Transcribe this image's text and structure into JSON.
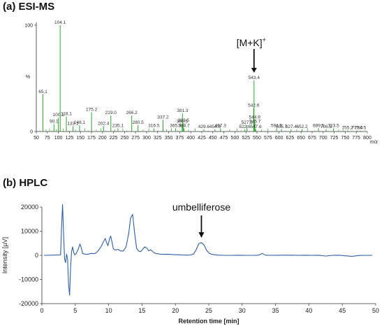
{
  "chart_data": [
    {
      "type": "bar",
      "title": "(a)  ESI-MS",
      "ylabel": "%",
      "xlabel": "m/z",
      "xlim": [
        50,
        800
      ],
      "ylim": [
        0,
        100
      ],
      "xticks": [
        50,
        75,
        100,
        125,
        150,
        175,
        200,
        225,
        250,
        275,
        300,
        325,
        350,
        375,
        400,
        425,
        450,
        475,
        500,
        525,
        550,
        575,
        600,
        625,
        650,
        675,
        700,
        725,
        750,
        775,
        800
      ],
      "yticks": [
        0,
        100
      ],
      "annotation": {
        "label": "[M+K]",
        "superscript": "+",
        "target_x": 543.4
      },
      "peaks": [
        {
          "x": 65.1,
          "y": 35,
          "label": "65.1"
        },
        {
          "x": 90.1,
          "y": 7,
          "label": "90.1"
        },
        {
          "x": 100.1,
          "y": 13,
          "label": "100.1"
        },
        {
          "x": 104.1,
          "y": 100,
          "label": "104.1"
        },
        {
          "x": 118.1,
          "y": 14,
          "label": "118.1"
        },
        {
          "x": 133.1,
          "y": 5,
          "label": "133.1"
        },
        {
          "x": 148.1,
          "y": 6,
          "label": "148.1"
        },
        {
          "x": 175.2,
          "y": 18,
          "label": "175.2"
        },
        {
          "x": 202.4,
          "y": 5,
          "label": "202.4"
        },
        {
          "x": 219.0,
          "y": 15,
          "label": "219.0"
        },
        {
          "x": 235.1,
          "y": 3,
          "label": "235.1"
        },
        {
          "x": 266.2,
          "y": 15,
          "label": "266.2"
        },
        {
          "x": 280.5,
          "y": 6,
          "label": "280.5"
        },
        {
          "x": 316.5,
          "y": 3,
          "label": "316.5"
        },
        {
          "x": 337.2,
          "y": 11,
          "label": "337.2"
        },
        {
          "x": 365.5,
          "y": 3,
          "label": "365.5"
        },
        {
          "x": 380.5,
          "y": 7,
          "label": "380.5"
        },
        {
          "x": 381.3,
          "y": 17,
          "label": "381.3"
        },
        {
          "x": 383.5,
          "y": 8,
          "label": "383.5"
        },
        {
          "x": 384.7,
          "y": 3,
          "label": "384.7"
        },
        {
          "x": 429.6,
          "y": 2,
          "label": "429.6"
        },
        {
          "x": 454.9,
          "y": 2,
          "label": "454.9"
        },
        {
          "x": 467.3,
          "y": 3,
          "label": "467.3"
        },
        {
          "x": 522.6,
          "y": 2,
          "label": "522.6"
        },
        {
          "x": 527.5,
          "y": 6,
          "label": "527.5"
        },
        {
          "x": 542.6,
          "y": 22,
          "label": "542.6"
        },
        {
          "x": 543.4,
          "y": 48,
          "label": "543.4"
        },
        {
          "x": 544.9,
          "y": 11,
          "label": "544.9"
        },
        {
          "x": 545.7,
          "y": 7,
          "label": "545.7"
        },
        {
          "x": 547.6,
          "y": 2,
          "label": "547.6"
        },
        {
          "x": 594.5,
          "y": 3,
          "label": "594.5"
        },
        {
          "x": 605.7,
          "y": 2,
          "label": "605.7"
        },
        {
          "x": 627.4,
          "y": 2,
          "label": "627.4"
        },
        {
          "x": 652.2,
          "y": 2,
          "label": "652.2"
        },
        {
          "x": 689.5,
          "y": 3,
          "label": "689.5"
        },
        {
          "x": 706.8,
          "y": 2,
          "label": "706.8"
        },
        {
          "x": 723.5,
          "y": 3,
          "label": "723.5"
        },
        {
          "x": 755.2,
          "y": 1,
          "label": "755.2"
        },
        {
          "x": 777.0,
          "y": 1,
          "label": "777.0"
        },
        {
          "x": 784.5,
          "y": 1,
          "label": "784.5"
        }
      ],
      "minor_peaks_x": [
        58,
        72,
        80,
        86,
        95,
        111,
        124,
        139,
        160,
        168,
        186,
        196,
        208,
        228,
        246,
        255,
        292,
        305,
        326,
        345,
        356,
        370,
        395,
        410,
        440,
        488,
        505,
        515,
        560,
        575,
        615,
        640,
        665,
        680,
        735,
        745,
        795
      ]
    },
    {
      "type": "line",
      "title": "(b)  HPLC",
      "xlabel": "Retention time [min]",
      "ylabel": "Intensity [µV]",
      "xlim": [
        0,
        50
      ],
      "ylim": [
        -20000,
        20000
      ],
      "xticks": [
        0,
        5,
        10,
        15,
        20,
        25,
        30,
        35,
        40,
        45,
        50
      ],
      "yticks": [
        -20000,
        -10000,
        0,
        10000,
        20000
      ],
      "annotation": {
        "label": "umbelliferose",
        "target_x": 23.9
      },
      "series": [
        {
          "color": "#2e5fa3",
          "x": [
            0.3,
            2.8,
            2.95,
            3.1,
            3.25,
            3.4,
            3.55,
            3.7,
            3.85,
            4.0,
            4.15,
            4.3,
            4.45,
            4.6,
            4.75,
            4.9,
            5.1,
            5.4,
            5.7,
            5.9,
            6.1,
            6.4,
            6.8,
            7.1,
            7.4,
            7.7,
            8.0,
            8.3,
            8.6,
            8.9,
            9.2,
            9.5,
            9.7,
            9.9,
            10.1,
            10.3,
            10.5,
            10.7,
            11.0,
            11.4,
            11.8,
            12.2,
            12.6,
            13.0,
            13.3,
            13.6,
            13.9,
            14.2,
            14.5,
            14.8,
            15.1,
            15.4,
            15.7,
            16.0,
            16.3,
            16.6,
            16.9,
            17.3,
            17.7,
            18.2,
            18.7,
            19.2,
            19.7,
            20.2,
            20.7,
            21.2,
            21.7,
            22.2,
            22.7,
            23.1,
            23.5,
            23.9,
            24.3,
            24.7,
            25.1,
            25.5,
            26.0,
            26.5,
            27.5,
            28.5,
            29.5,
            30.5,
            31.5,
            32.5,
            33.0,
            33.5,
            34.5,
            35.5,
            36.5,
            37.5,
            38.5,
            39.5,
            40.5,
            41.5,
            42.5,
            43.5,
            44.5,
            45.5,
            46.5,
            47.5,
            48.5,
            49.5
          ],
          "y": [
            0,
            200,
            12000,
            21000,
            9000,
            -1500,
            -3000,
            500,
            -1500,
            -12000,
            -16500,
            -5000,
            1500,
            3500,
            1500,
            200,
            600,
            2200,
            4700,
            3200,
            800,
            500,
            400,
            600,
            800,
            700,
            800,
            1500,
            2500,
            3800,
            5500,
            7000,
            5200,
            4000,
            6500,
            8000,
            5500,
            2800,
            2200,
            2500,
            1800,
            1800,
            3500,
            9000,
            15500,
            17000,
            9000,
            2800,
            1800,
            1500,
            2500,
            3500,
            3000,
            1900,
            2300,
            1600,
            900,
            700,
            500,
            400,
            450,
            400,
            300,
            250,
            200,
            150,
            100,
            150,
            500,
            2200,
            4800,
            5300,
            4300,
            2000,
            800,
            400,
            200,
            100,
            0,
            0,
            50,
            0,
            0,
            100,
            800,
            50,
            0,
            50,
            100,
            50,
            0,
            50,
            0,
            50,
            -300,
            0,
            50,
            -200,
            -400,
            -50,
            0,
            0
          ]
        }
      ]
    }
  ]
}
